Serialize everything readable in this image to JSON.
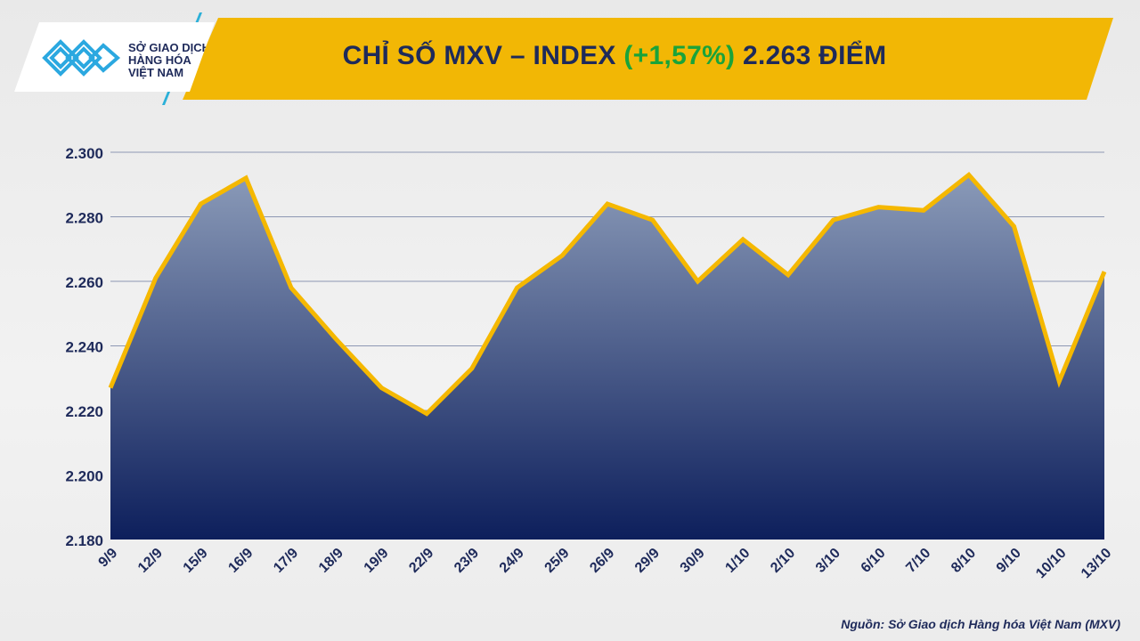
{
  "header": {
    "title_prefix": "CHỈ SỐ MXV – INDEX ",
    "title_change": "(+1,57%)",
    "title_suffix": " 2.263 ĐIỂM"
  },
  "logo": {
    "line1": "SỞ GIAO DỊCH",
    "line2": "HÀNG HÓA",
    "line3": "VIỆT NAM"
  },
  "source": "Nguồn: Sở Giao dịch Hàng hóa Việt Nam (MXV)",
  "colors": {
    "banner": "#f2b705",
    "line": "#f5b800",
    "area_top": "#8a9ab8",
    "area_bottom": "#0d1f5c",
    "positive": "#1aa33a",
    "text": "#1e2a5a"
  },
  "chart_data": {
    "type": "area",
    "title": "CHỈ SỐ MXV – INDEX (+1,57%) 2.263 ĐIỂM",
    "categories": [
      "9/9",
      "12/9",
      "15/9",
      "16/9",
      "17/9",
      "18/9",
      "19/9",
      "22/9",
      "23/9",
      "24/9",
      "25/9",
      "26/9",
      "29/9",
      "30/9",
      "1/10",
      "2/10",
      "3/10",
      "6/10",
      "7/10",
      "8/10",
      "9/10",
      "10/10",
      "13/10"
    ],
    "values": [
      2227,
      2261,
      2284,
      2292,
      2258,
      2242,
      2227,
      2219,
      2233,
      2258,
      2268,
      2284,
      2279,
      2260,
      2273,
      2262,
      2279,
      2283,
      2282,
      2293,
      2277,
      2229,
      2263
    ],
    "ylim": [
      2180,
      2300
    ],
    "yticks": [
      2180,
      2200,
      2220,
      2240,
      2260,
      2280,
      2300
    ],
    "ytick_labels": [
      "2.180",
      "2.200",
      "2.220",
      "2.240",
      "2.260",
      "2.280",
      "2.300"
    ],
    "grid": true,
    "xlabel": "",
    "ylabel": ""
  }
}
